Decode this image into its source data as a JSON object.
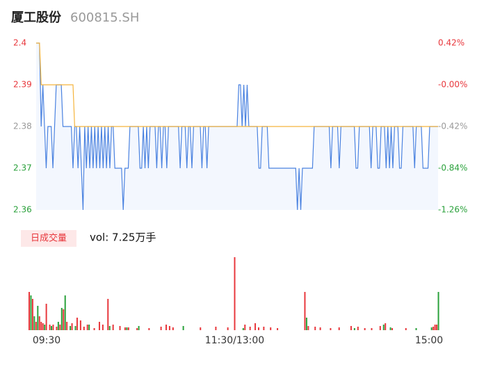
{
  "header": {
    "name": "厦工股份",
    "code": "600815.SH"
  },
  "chart_data": [
    {
      "type": "line",
      "xlim": [
        0,
        240
      ],
      "ylim": [
        2.36,
        2.4
      ],
      "yticks": [
        2.4,
        2.39,
        2.38,
        2.37,
        2.36
      ],
      "y2lim": [
        -1.26,
        0.42
      ],
      "y2ticks": [
        {
          "value": 0.42,
          "label": "0.42%"
        },
        {
          "value": 0,
          "label": "-0.00%"
        },
        {
          "value": -0.42,
          "label": "-0.42%"
        },
        {
          "value": -0.84,
          "label": "-0.84%"
        },
        {
          "value": -1.26,
          "label": "-1.26%"
        }
      ],
      "tick_colors": [
        "#e8373c",
        "#e8373c",
        "#999999",
        "#2aa13b",
        "#2aa13b"
      ],
      "fill": "#f3f7fe",
      "series": [
        {
          "color": "#4a82e0",
          "values": [
            2.4,
            2.4,
            2.4,
            2.38,
            2.39,
            2.38,
            2.37,
            2.38,
            2.38,
            2.38,
            2.37,
            2.38,
            2.39,
            2.39,
            2.39,
            2.39,
            2.38,
            2.38,
            2.38,
            2.38,
            2.38,
            2.38,
            2.37,
            2.38,
            2.38,
            2.37,
            2.38,
            2.37,
            2.36,
            2.38,
            2.37,
            2.38,
            2.37,
            2.38,
            2.37,
            2.38,
            2.37,
            2.38,
            2.37,
            2.38,
            2.37,
            2.38,
            2.37,
            2.38,
            2.37,
            2.38,
            2.38,
            2.37,
            2.37,
            2.37,
            2.37,
            2.37,
            2.36,
            2.37,
            2.37,
            2.37,
            2.38,
            2.38,
            2.38,
            2.38,
            2.38,
            2.38,
            2.37,
            2.37,
            2.38,
            2.37,
            2.38,
            2.37,
            2.38,
            2.38,
            2.38,
            2.38,
            2.37,
            2.38,
            2.38,
            2.37,
            2.38,
            2.38,
            2.37,
            2.38,
            2.38,
            2.38,
            2.38,
            2.38,
            2.38,
            2.38,
            2.37,
            2.38,
            2.38,
            2.38,
            2.37,
            2.38,
            2.38,
            2.37,
            2.38,
            2.38,
            2.38,
            2.38,
            2.38,
            2.37,
            2.38,
            2.38,
            2.37,
            2.38,
            2.38,
            2.38,
            2.38,
            2.38,
            2.38,
            2.38,
            2.38,
            2.38,
            2.38,
            2.38,
            2.38,
            2.38,
            2.38,
            2.38,
            2.38,
            2.38,
            2.38,
            2.39,
            2.39,
            2.38,
            2.39,
            2.38,
            2.39,
            2.38,
            2.38,
            2.38,
            2.38,
            2.38,
            2.38,
            2.37,
            2.37,
            2.38,
            2.38,
            2.38,
            2.38,
            2.37,
            2.37,
            2.37,
            2.37,
            2.37,
            2.37,
            2.37,
            2.37,
            2.37,
            2.37,
            2.37,
            2.37,
            2.37,
            2.37,
            2.37,
            2.37,
            2.37,
            2.36,
            2.37,
            2.36,
            2.37,
            2.37,
            2.37,
            2.37,
            2.37,
            2.37,
            2.37,
            2.38,
            2.38,
            2.38,
            2.38,
            2.38,
            2.38,
            2.38,
            2.38,
            2.38,
            2.38,
            2.37,
            2.38,
            2.38,
            2.38,
            2.38,
            2.37,
            2.38,
            2.38,
            2.38,
            2.38,
            2.38,
            2.38,
            2.38,
            2.38,
            2.38,
            2.37,
            2.37,
            2.38,
            2.38,
            2.38,
            2.38,
            2.38,
            2.38,
            2.38,
            2.37,
            2.38,
            2.38,
            2.38,
            2.37,
            2.37,
            2.38,
            2.38,
            2.38,
            2.37,
            2.38,
            2.37,
            2.38,
            2.37,
            2.38,
            2.38,
            2.38,
            2.37,
            2.37,
            2.38,
            2.38,
            2.38,
            2.38,
            2.38,
            2.38,
            2.38,
            2.37,
            2.38,
            2.38,
            2.38,
            2.38,
            2.37,
            2.37,
            2.37,
            2.37,
            2.38,
            2.38,
            2.38,
            2.38,
            2.38,
            2.38
          ]
        },
        {
          "color": "#f5b43c",
          "x": [
            0,
            2,
            3,
            22,
            23,
            240
          ],
          "values": [
            2.4,
            2.4,
            2.39,
            2.39,
            2.38,
            2.38
          ]
        }
      ]
    },
    {
      "type": "bar",
      "label": "日成交量",
      "summary": "vol: 7.25万手",
      "xlim": [
        0,
        240
      ],
      "ylim": [
        0,
        1100
      ],
      "xticks": [
        {
          "value": 0,
          "label": "09:30"
        },
        {
          "value": 120,
          "label": "11:30/13:00"
        },
        {
          "value": 240,
          "label": "15:00"
        }
      ],
      "series": [
        {
          "color": "#e8373c",
          "x": [
            0,
            2,
            4,
            6,
            7,
            8,
            10,
            12,
            14,
            16,
            18,
            20,
            22,
            25,
            28,
            30,
            32,
            34,
            38,
            41,
            43,
            46,
            49,
            53,
            56,
            58,
            63,
            70,
            77,
            80,
            82,
            84,
            100,
            109,
            116,
            120,
            126,
            129,
            132,
            134,
            137,
            141,
            145,
            161,
            163,
            167,
            170,
            176,
            181,
            188,
            192,
            196,
            200,
            205,
            208,
            212,
            220,
            236,
            237,
            238
          ],
          "values": [
            550,
            450,
            120,
            200,
            120,
            100,
            380,
            80,
            80,
            50,
            80,
            300,
            120,
            100,
            180,
            140,
            50,
            80,
            30,
            120,
            80,
            450,
            80,
            60,
            40,
            40,
            30,
            30,
            50,
            80,
            60,
            40,
            40,
            50,
            40,
            1050,
            80,
            50,
            100,
            40,
            50,
            40,
            30,
            550,
            60,
            50,
            40,
            30,
            40,
            60,
            50,
            30,
            30,
            60,
            100,
            30,
            30,
            50,
            80,
            80
          ]
        },
        {
          "color": "#2aa13b",
          "x": [
            1,
            3,
            5,
            9,
            13,
            17,
            19,
            21,
            24,
            27,
            35,
            47,
            57,
            64,
            90,
            125,
            162,
            190,
            207,
            211,
            226,
            235,
            239
          ],
          "values": [
            500,
            200,
            350,
            80,
            60,
            120,
            320,
            500,
            60,
            60,
            80,
            60,
            40,
            60,
            60,
            30,
            180,
            30,
            80,
            40,
            30,
            40,
            550
          ]
        }
      ]
    }
  ]
}
